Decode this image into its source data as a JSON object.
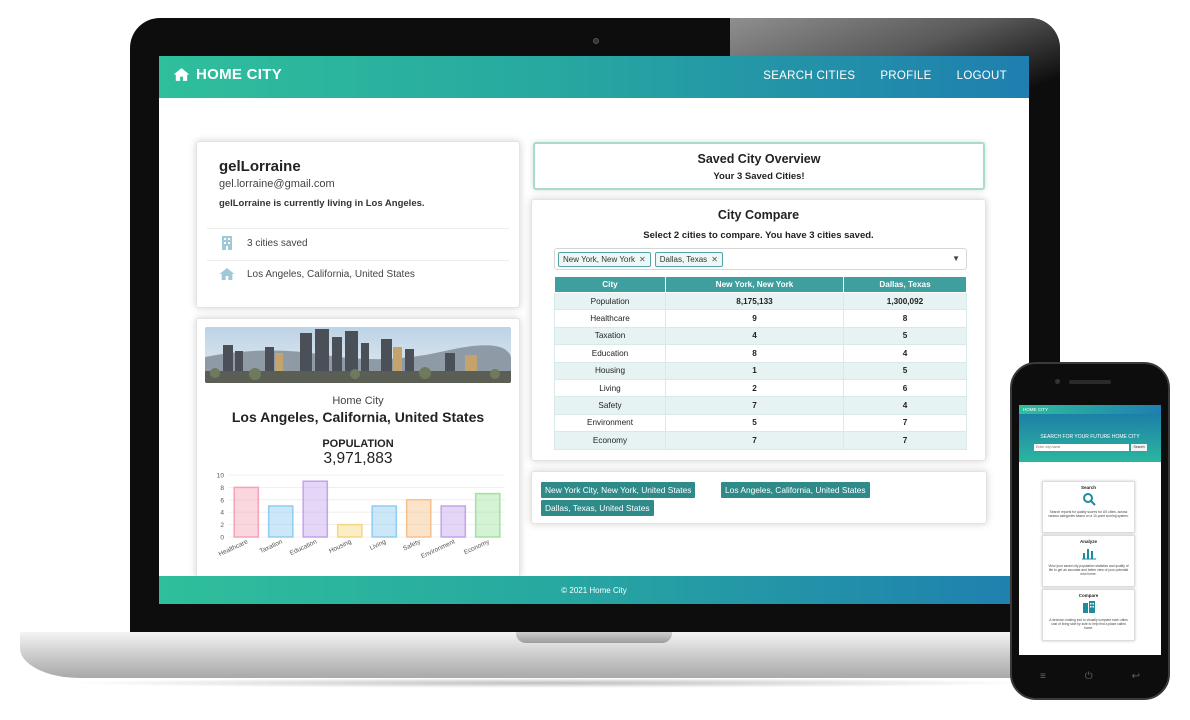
{
  "app": {
    "brand": "HOME CITY",
    "nav": [
      "SEARCH CITIES",
      "PROFILE",
      "LOGOUT"
    ],
    "footer": "© 2021 Home City"
  },
  "profile": {
    "username": "gelLorraine",
    "email": "gel.lorraine@gmail.com",
    "living": "gelLorraine is currently living in Los Angeles.",
    "saved_count_text": "3 cities saved",
    "current_city": "Los Angeles, California, United States"
  },
  "city_card": {
    "subtitle": "Home City",
    "title": "Los Angeles, California, United States",
    "population_label": "POPULATION",
    "population_value": "3,971,883"
  },
  "chart_data": {
    "type": "bar",
    "categories": [
      "Healthcare",
      "Taxation",
      "Education",
      "Housing",
      "Living",
      "Safety",
      "Environment",
      "Economy"
    ],
    "values": [
      8,
      5,
      9,
      2,
      5,
      6,
      5,
      7
    ],
    "ylim": [
      0,
      10
    ],
    "yticks": [
      "10",
      "8",
      "6",
      "4",
      "2",
      "0"
    ],
    "colors": [
      "#f5a3b6",
      "#8ecdf0",
      "#c3a4ec",
      "#f7d77d",
      "#8ecdf0",
      "#f7c08a",
      "#c3a4ec",
      "#9fe3a0"
    ],
    "grid": true,
    "legend": "none"
  },
  "overview": {
    "title": "Saved City Overview",
    "subtitle": "Your 3 Saved Cities!"
  },
  "compare": {
    "title": "City Compare",
    "subtitle": "Select 2 cities to compare. You have 3 cities saved.",
    "chips": [
      "New York, New York",
      "Dallas, Texas"
    ],
    "headers": [
      "City",
      "New York, New York",
      "Dallas, Texas"
    ],
    "rows": [
      [
        "Population",
        "8,175,133",
        "1,300,092"
      ],
      [
        "Healthcare",
        "9",
        "8"
      ],
      [
        "Taxation",
        "4",
        "5"
      ],
      [
        "Education",
        "8",
        "4"
      ],
      [
        "Housing",
        "1",
        "5"
      ],
      [
        "Living",
        "2",
        "6"
      ],
      [
        "Safety",
        "7",
        "4"
      ],
      [
        "Environment",
        "5",
        "7"
      ],
      [
        "Economy",
        "7",
        "7"
      ]
    ]
  },
  "saved_cities": [
    "New York City, New York, United States",
    "Los Angeles, California, United States",
    "Dallas, Texas, United States"
  ],
  "mobile": {
    "brand": "HOME CITY",
    "hero_title": "SEARCH FOR YOUR FUTURE HOME CITY",
    "search_placeholder": "Enter city name",
    "search_button": "Search",
    "cards": [
      {
        "title": "Search",
        "icon": "search-icon",
        "text": "Search reports for quality scores for US cities, across various categories based on a 10-point scoring system."
      },
      {
        "title": "Analyze",
        "icon": "bar-chart-icon",
        "text": "View your saved city population statistics and quality of life to get an accurate and better view of your potential new home."
      },
      {
        "title": "Compare",
        "icon": "buildings-icon",
        "text": "A decision making tool to visually compare each cities cost of living side by side to help find a place called home."
      }
    ]
  }
}
